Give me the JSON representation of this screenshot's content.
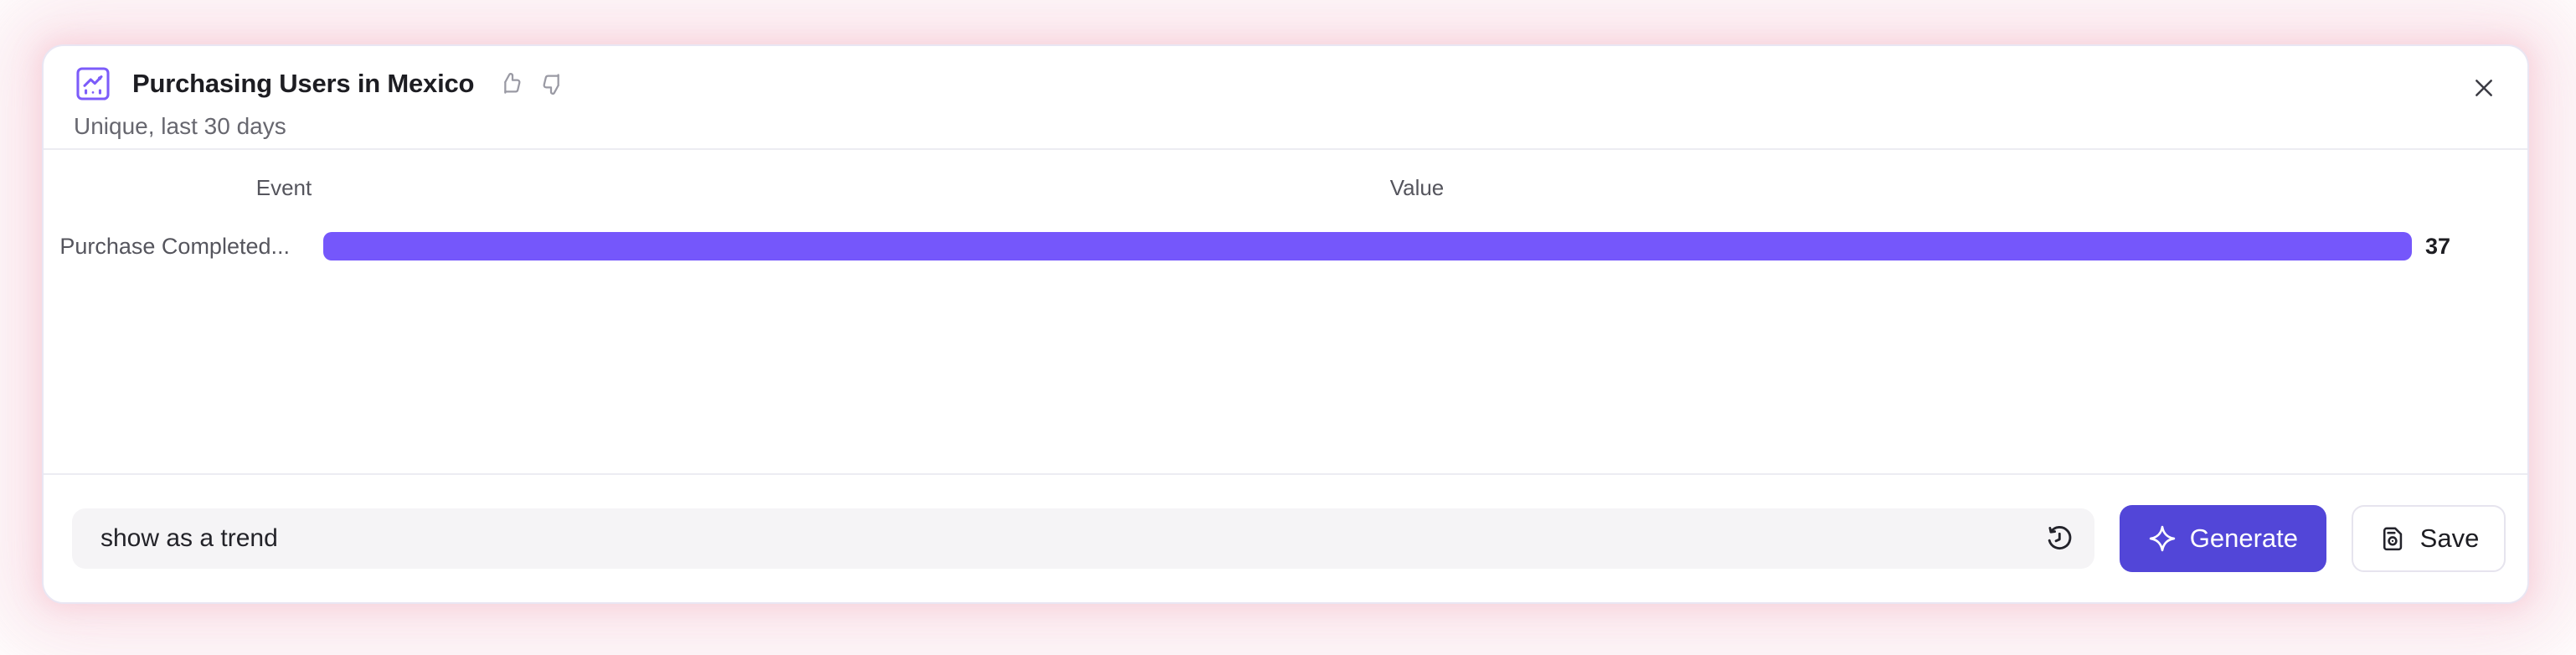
{
  "card": {
    "header": {
      "title": "Purchasing Users in Mexico",
      "subtitle": "Unique, last 30 days"
    }
  },
  "chart_data": {
    "type": "bar",
    "orientation": "horizontal",
    "title": "Purchasing Users in Mexico",
    "subtitle": "Unique, last 30 days",
    "column_headers": [
      "Event",
      "Value"
    ],
    "categories": [
      "Purchase Completed..."
    ],
    "values": [
      37
    ],
    "value_labels": [
      "37"
    ],
    "xlim": [
      0,
      37
    ],
    "grid": false,
    "legend": "none",
    "bar_color": "#7557fb"
  },
  "footer": {
    "prompt": {
      "value": "show as a trend",
      "placeholder": ""
    },
    "generate": {
      "label": "Generate"
    },
    "save": {
      "label": "Save"
    }
  },
  "icons": {
    "report": "line-chart-report-icon",
    "thumbs_up": "thumbs-up-icon",
    "thumbs_down": "thumbs-down-icon",
    "close": "close-icon",
    "history": "history-icon",
    "sparkle": "sparkle-icon",
    "save": "save-bookmark-icon"
  },
  "colors": {
    "accent_button": "#5246d8",
    "bar": "#7557fb",
    "glow": "#f9dce3",
    "icon_purple": "#7c5cfa"
  }
}
